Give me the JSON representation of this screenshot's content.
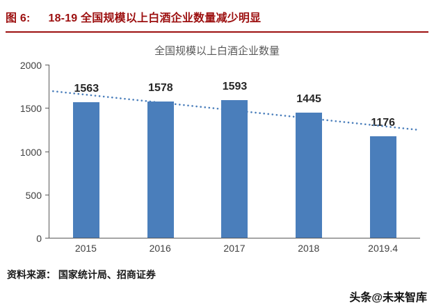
{
  "header": {
    "figure_label": "图 6:",
    "title": "18-19 全国规模以上白酒企业数量减少明显",
    "accent_color": "#9c0f0f"
  },
  "chart_data": {
    "type": "bar",
    "title": "全国规模以上白酒企业数量",
    "categories": [
      "2015",
      "2016",
      "2017",
      "2018",
      "2019.4"
    ],
    "values": [
      1563,
      1578,
      1593,
      1445,
      1176
    ],
    "xlabel": "",
    "ylabel": "",
    "ylim": [
      0,
      2000
    ],
    "yticks": [
      0,
      500,
      1000,
      1500,
      2000
    ],
    "grid": false,
    "legend_position": "none",
    "bar_color": "#4a7ebb",
    "trendline": true,
    "trendline_style": "dotted",
    "trendline_color": "#4a7ebb"
  },
  "footer": {
    "source": "资料来源： 国家统计局、招商证券",
    "watermark": "头条@未来智库"
  }
}
